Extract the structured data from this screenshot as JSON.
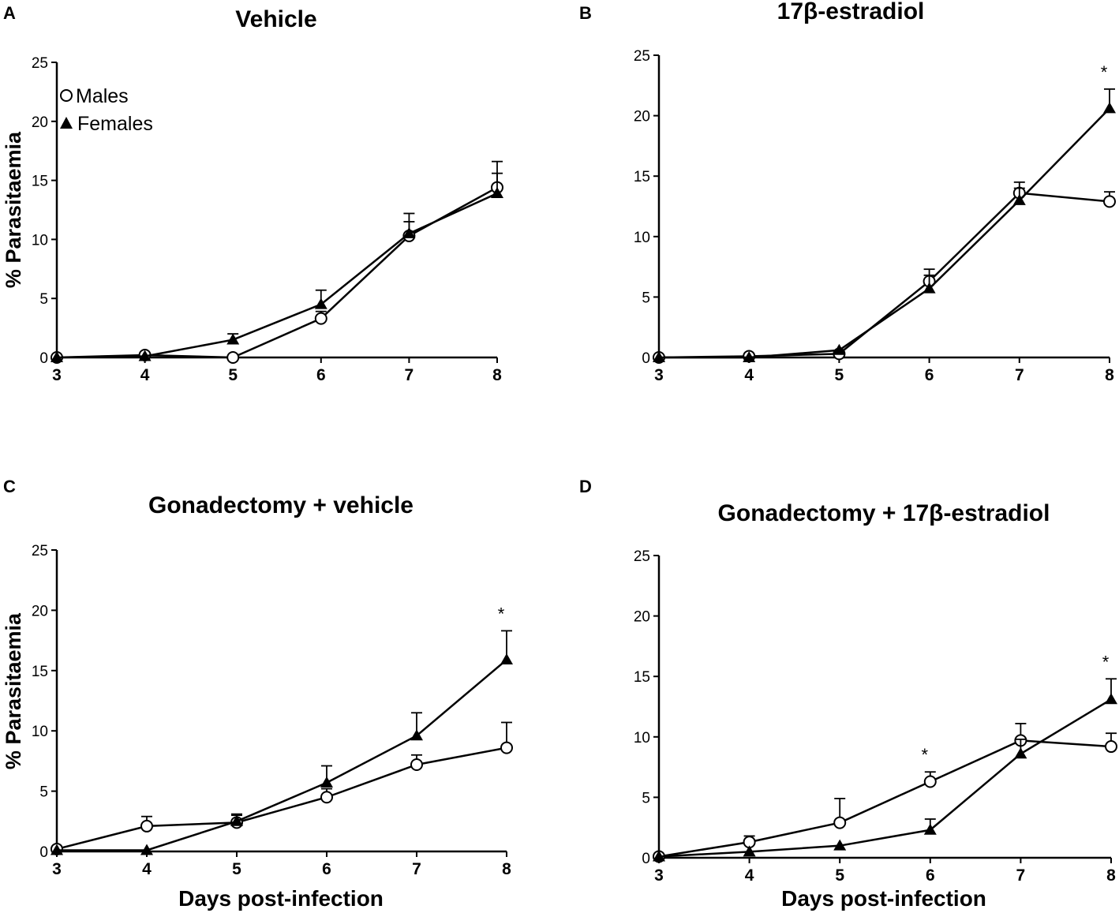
{
  "chart_data": [
    {
      "type": "line",
      "panel": "A",
      "title": "Vehicle",
      "xlabel": "",
      "ylabel": "% Parasitaemia",
      "x": [
        3,
        4,
        5,
        6,
        7,
        8
      ],
      "xlim": [
        3,
        8
      ],
      "ylim": [
        0,
        25
      ],
      "yticks": [
        0,
        5,
        10,
        15,
        20,
        25
      ],
      "legend": {
        "position": "top-left",
        "entries": [
          "Males",
          "Females"
        ]
      },
      "series": [
        {
          "name": "Males",
          "marker": "open-circle",
          "values": [
            0,
            0.2,
            0,
            3.3,
            10.3,
            14.4
          ],
          "errors": [
            0,
            0,
            0,
            0.6,
            1.2,
            2.2
          ]
        },
        {
          "name": "Females",
          "marker": "filled-triangle",
          "values": [
            0,
            0.1,
            1.5,
            4.5,
            10.5,
            13.9
          ],
          "errors": [
            0,
            0,
            0.5,
            1.2,
            1.7,
            1.7
          ]
        }
      ],
      "annotations": []
    },
    {
      "type": "line",
      "panel": "B",
      "title": "17β-estradiol",
      "xlabel": "",
      "ylabel": "",
      "x": [
        3,
        4,
        5,
        6,
        7,
        8
      ],
      "xlim": [
        3,
        8
      ],
      "ylim": [
        0,
        25
      ],
      "yticks": [
        0,
        5,
        10,
        15,
        20,
        25
      ],
      "series": [
        {
          "name": "Males",
          "marker": "open-circle",
          "values": [
            0,
            0.1,
            0.3,
            6.3,
            13.6,
            12.9
          ],
          "errors": [
            0,
            0,
            0,
            1.0,
            0.9,
            0.8
          ]
        },
        {
          "name": "Females",
          "marker": "filled-triangle",
          "values": [
            0,
            0,
            0.6,
            5.7,
            13.0,
            20.6
          ],
          "errors": [
            0,
            0,
            0,
            1.1,
            1.0,
            1.6
          ]
        }
      ],
      "annotations": [
        {
          "x": 8,
          "text": "*"
        }
      ]
    },
    {
      "type": "line",
      "panel": "C",
      "title": "Gonadectomy + vehicle",
      "xlabel": "Days post-infection",
      "ylabel": "% Parasitaemia",
      "x": [
        3,
        4,
        5,
        6,
        7,
        8
      ],
      "xlim": [
        3,
        8
      ],
      "ylim": [
        0,
        25
      ],
      "yticks": [
        0,
        5,
        10,
        15,
        20,
        25
      ],
      "series": [
        {
          "name": "Males",
          "marker": "open-circle",
          "values": [
            0.2,
            2.1,
            2.4,
            4.5,
            7.2,
            8.6
          ],
          "errors": [
            0,
            0.8,
            0.6,
            0.7,
            0.8,
            2.1
          ]
        },
        {
          "name": "Females",
          "marker": "filled-triangle",
          "values": [
            0.1,
            0.1,
            2.5,
            5.7,
            9.6,
            15.9
          ],
          "errors": [
            0,
            0,
            0.6,
            1.4,
            1.9,
            2.4
          ]
        }
      ],
      "annotations": [
        {
          "x": 8,
          "text": "*"
        }
      ]
    },
    {
      "type": "line",
      "panel": "D",
      "title": "Gonadectomy + 17β-estradiol",
      "xlabel": "Days post-infection",
      "ylabel": "",
      "x": [
        3,
        4,
        5,
        6,
        7,
        8
      ],
      "xlim": [
        3,
        8
      ],
      "ylim": [
        0,
        25
      ],
      "yticks": [
        0,
        5,
        10,
        15,
        20,
        25
      ],
      "series": [
        {
          "name": "Males",
          "marker": "open-circle",
          "values": [
            0.1,
            1.3,
            2.9,
            6.3,
            9.7,
            9.2
          ],
          "errors": [
            0,
            0.5,
            2.0,
            0.8,
            1.4,
            1.1
          ]
        },
        {
          "name": "Females",
          "marker": "filled-triangle",
          "values": [
            0.1,
            0.5,
            1.0,
            2.3,
            8.6,
            13.1
          ],
          "errors": [
            0,
            0,
            0,
            0.9,
            1.2,
            1.7
          ]
        }
      ],
      "annotations": [
        {
          "x": 6,
          "text": "*"
        },
        {
          "x": 8,
          "text": "*"
        }
      ]
    }
  ]
}
